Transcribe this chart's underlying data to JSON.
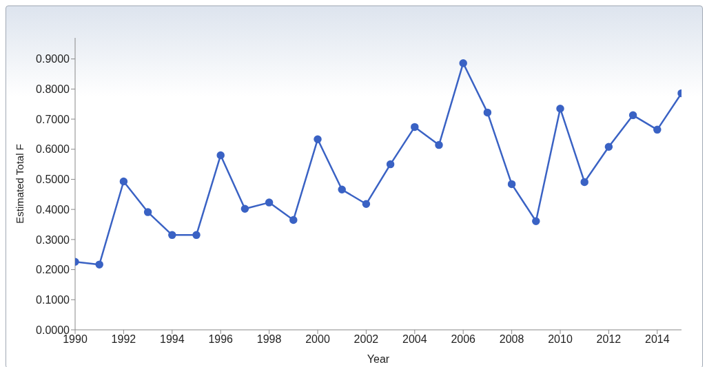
{
  "chart_data": {
    "type": "line",
    "xlabel": "Year",
    "ylabel": "Estimated Total F",
    "x": [
      1990,
      1991,
      1992,
      1993,
      1994,
      1995,
      1996,
      1997,
      1998,
      1999,
      2000,
      2001,
      2002,
      2003,
      2004,
      2005,
      2006,
      2007,
      2008,
      2009,
      2010,
      2011,
      2012,
      2013,
      2014,
      2015
    ],
    "series": [
      {
        "color": "#3a62c4",
        "values": [
          0.226,
          0.217,
          0.493,
          0.391,
          0.315,
          0.315,
          0.58,
          0.402,
          0.423,
          0.365,
          0.633,
          0.466,
          0.418,
          0.55,
          0.674,
          0.614,
          0.886,
          0.722,
          0.484,
          0.361,
          0.735,
          0.491,
          0.608,
          0.713,
          0.665,
          0.786
        ]
      }
    ],
    "xlim": [
      1990,
      2015
    ],
    "xticks": [
      1990,
      1992,
      1994,
      1996,
      1998,
      2000,
      2002,
      2004,
      2006,
      2008,
      2010,
      2012,
      2014
    ],
    "ylim": [
      0,
      0.97
    ],
    "yticks": [
      {
        "value": 0,
        "label": "0.0000"
      },
      {
        "value": 0.1,
        "label": "0.1000"
      },
      {
        "value": 0.2,
        "label": "0.2000"
      },
      {
        "value": 0.3,
        "label": "0.3000"
      },
      {
        "value": 0.4,
        "label": "0.4000"
      },
      {
        "value": 0.5,
        "label": "0.5000"
      },
      {
        "value": 0.6,
        "label": "0.6000"
      },
      {
        "value": 0.7,
        "label": "0.7000"
      },
      {
        "value": 0.8,
        "label": "0.8000"
      },
      {
        "value": 0.9,
        "label": "0.9000"
      }
    ],
    "grid": false,
    "marker": "circle",
    "line_style": "solid",
    "legend": false
  }
}
